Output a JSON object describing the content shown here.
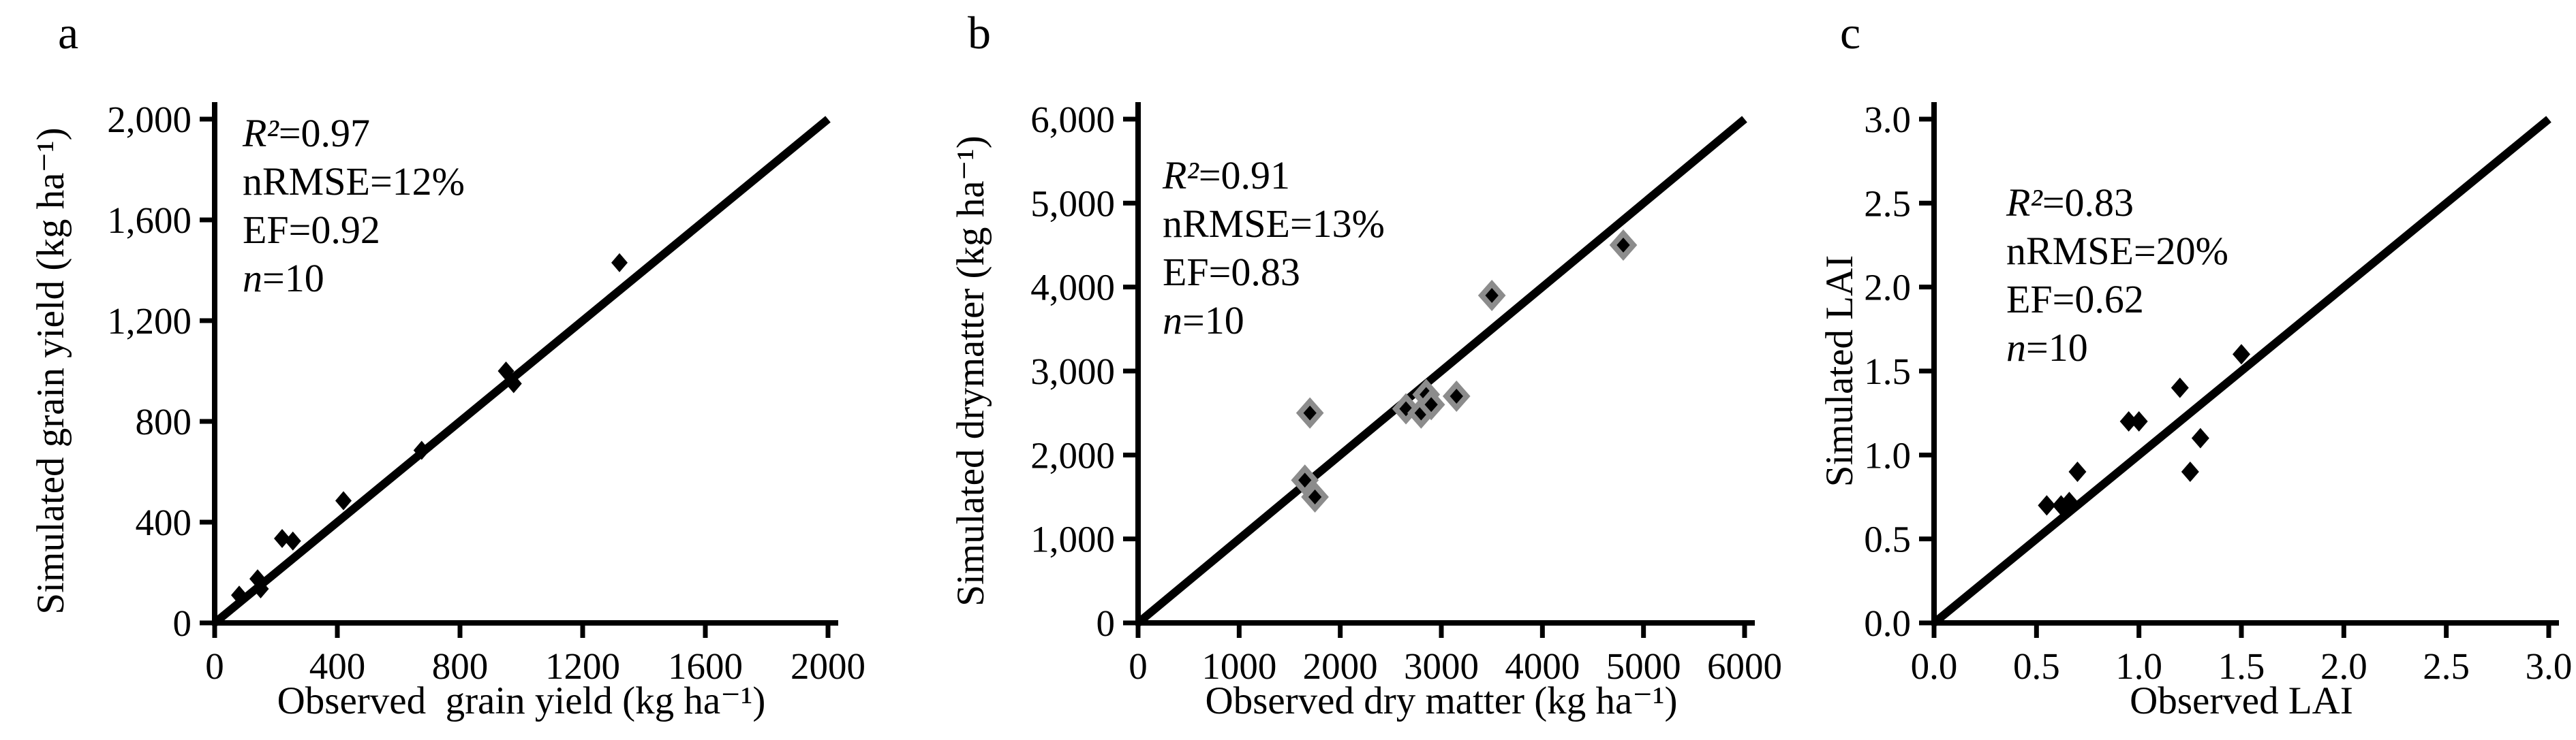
{
  "figure": {
    "background": "#ffffff",
    "text_color": "#000000",
    "line_color": "#000000",
    "marker_outline_color": "#8c8c8c"
  },
  "chart_data": [
    {
      "id": "a",
      "panel_label": "a",
      "type": "scatter",
      "xlabel": "Observed  grain yield (kg ha⁻¹)",
      "ylabel": "Simulated grain yield (kg ha⁻¹)",
      "xlim": [
        0,
        2000
      ],
      "ylim": [
        0,
        2000
      ],
      "xticks": [
        0,
        400,
        800,
        1200,
        1600,
        2000
      ],
      "xtick_labels": [
        "0",
        "400",
        "800",
        "1200",
        "1600",
        "2000"
      ],
      "yticks": [
        0,
        400,
        800,
        1200,
        1600,
        2000
      ],
      "ytick_labels": [
        "0",
        "400",
        "800",
        "1,200",
        "1,600",
        "2,000"
      ],
      "grid": false,
      "legend": false,
      "identity_line": [
        [
          0,
          0
        ],
        [
          2000,
          2000
        ]
      ],
      "stats": [
        {
          "em": "R²",
          "text": "=0.97"
        },
        {
          "em": "",
          "text": "nRMSE=12%"
        },
        {
          "em": "",
          "text": "EF=0.92"
        },
        {
          "em": "n",
          "text": "=10"
        }
      ],
      "marker": {
        "shape": "diamond",
        "fill": "#000000",
        "outline": "none"
      },
      "points": [
        [
          80,
          110
        ],
        [
          140,
          175
        ],
        [
          150,
          135
        ],
        [
          220,
          335
        ],
        [
          255,
          325
        ],
        [
          420,
          485
        ],
        [
          675,
          685
        ],
        [
          950,
          1000
        ],
        [
          975,
          950
        ],
        [
          1320,
          1430
        ]
      ]
    },
    {
      "id": "b",
      "panel_label": "b",
      "type": "scatter",
      "xlabel": "Observed dry matter (kg ha⁻¹)",
      "ylabel": "Simulated drymatter (kg ha⁻¹)",
      "xlim": [
        0,
        6000
      ],
      "ylim": [
        0,
        6000
      ],
      "xticks": [
        0,
        1000,
        2000,
        3000,
        4000,
        5000,
        6000
      ],
      "xtick_labels": [
        "0",
        "1000",
        "2000",
        "3000",
        "4000",
        "5000",
        "6000"
      ],
      "yticks": [
        0,
        1000,
        2000,
        3000,
        4000,
        5000,
        6000
      ],
      "ytick_labels": [
        "0",
        "1,000",
        "2,000",
        "3,000",
        "4,000",
        "5,000",
        "6,000"
      ],
      "grid": false,
      "legend": false,
      "identity_line": [
        [
          0,
          0
        ],
        [
          6000,
          6000
        ]
      ],
      "stats": [
        {
          "em": "R²",
          "text": "=0.91"
        },
        {
          "em": "",
          "text": "nRMSE=13%"
        },
        {
          "em": "",
          "text": "EF=0.83"
        },
        {
          "em": "n",
          "text": "=10"
        }
      ],
      "marker": {
        "shape": "diamond",
        "fill": "#000000",
        "outline": "#8c8c8c"
      },
      "points": [
        [
          1700,
          2500
        ],
        [
          1650,
          1700
        ],
        [
          1750,
          1500
        ],
        [
          2650,
          2550
        ],
        [
          2800,
          2500
        ],
        [
          2850,
          2720
        ],
        [
          2900,
          2600
        ],
        [
          3150,
          2700
        ],
        [
          3500,
          3900
        ],
        [
          4800,
          4500
        ]
      ]
    },
    {
      "id": "c",
      "panel_label": "c",
      "type": "scatter",
      "xlabel": "Observed LAI",
      "ylabel": "Simulated LAI",
      "xlim": [
        0,
        3
      ],
      "ylim": [
        0,
        3
      ],
      "xticks": [
        0,
        0.5,
        1.0,
        1.5,
        2.0,
        2.5,
        3.0
      ],
      "xtick_labels": [
        "0.0",
        "0.5",
        "1.0",
        "1.5",
        "2.0",
        "2.5",
        "3.0"
      ],
      "yticks": [
        0,
        0.5,
        1.0,
        1.5,
        2.0,
        2.5,
        3.0
      ],
      "ytick_labels": [
        "0.0",
        "0.5",
        "1.0",
        "1.5",
        "2.0",
        "2.5",
        "3.0"
      ],
      "grid": false,
      "legend": false,
      "identity_line": [
        [
          0,
          0
        ],
        [
          3,
          3
        ]
      ],
      "stats": [
        {
          "em": "R²",
          "text": "=0.83"
        },
        {
          "em": "",
          "text": "nRMSE=20%"
        },
        {
          "em": "",
          "text": "EF=0.62"
        },
        {
          "em": "n",
          "text": "=10"
        }
      ],
      "marker": {
        "shape": "diamond",
        "fill": "#000000",
        "outline": "none"
      },
      "points": [
        [
          0.55,
          0.7
        ],
        [
          0.62,
          0.7
        ],
        [
          0.66,
          0.72
        ],
        [
          0.7,
          0.9
        ],
        [
          0.95,
          1.2
        ],
        [
          1.0,
          1.2
        ],
        [
          1.2,
          1.4
        ],
        [
          1.25,
          0.9
        ],
        [
          1.3,
          1.1
        ],
        [
          1.5,
          1.6
        ]
      ]
    }
  ]
}
